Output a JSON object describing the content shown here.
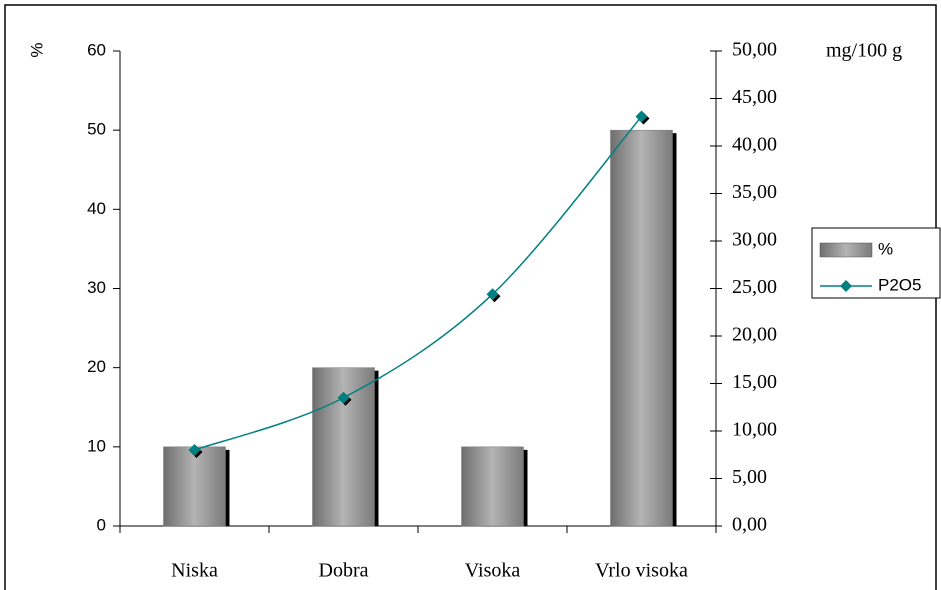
{
  "chart_data": {
    "type": "bar-line",
    "y_label": "%",
    "y2_label": "mg/100 g",
    "categories": [
      "Niska",
      "Dobra",
      "Visoka",
      "Vrlo visoka"
    ],
    "series": [
      {
        "name": "%",
        "type": "bar",
        "color": "#8c8c8c",
        "values": [
          10,
          20,
          10,
          50
        ]
      },
      {
        "name": "P2O5",
        "type": "line",
        "axis": "y2",
        "color": "#008080",
        "values": [
          8.0,
          13.5,
          24.4,
          43.1
        ]
      }
    ],
    "ylim": [
      0,
      60
    ],
    "yticks": [
      0,
      10,
      20,
      30,
      40,
      50,
      60
    ],
    "y2lim": [
      0,
      50
    ],
    "y2ticks": [
      {
        "value": 0,
        "label": "0,00"
      },
      {
        "value": 5,
        "label": "5,00"
      },
      {
        "value": 10,
        "label": "10,00"
      },
      {
        "value": 15,
        "label": "15,00"
      },
      {
        "value": 20,
        "label": "20,00"
      },
      {
        "value": 25,
        "label": "25,00"
      },
      {
        "value": 30,
        "label": "30,00"
      },
      {
        "value": 35,
        "label": "35,00"
      },
      {
        "value": 40,
        "label": "40,00"
      },
      {
        "value": 45,
        "label": "45,00"
      },
      {
        "value": 50,
        "label": "50,00"
      }
    ],
    "legend": "right"
  }
}
